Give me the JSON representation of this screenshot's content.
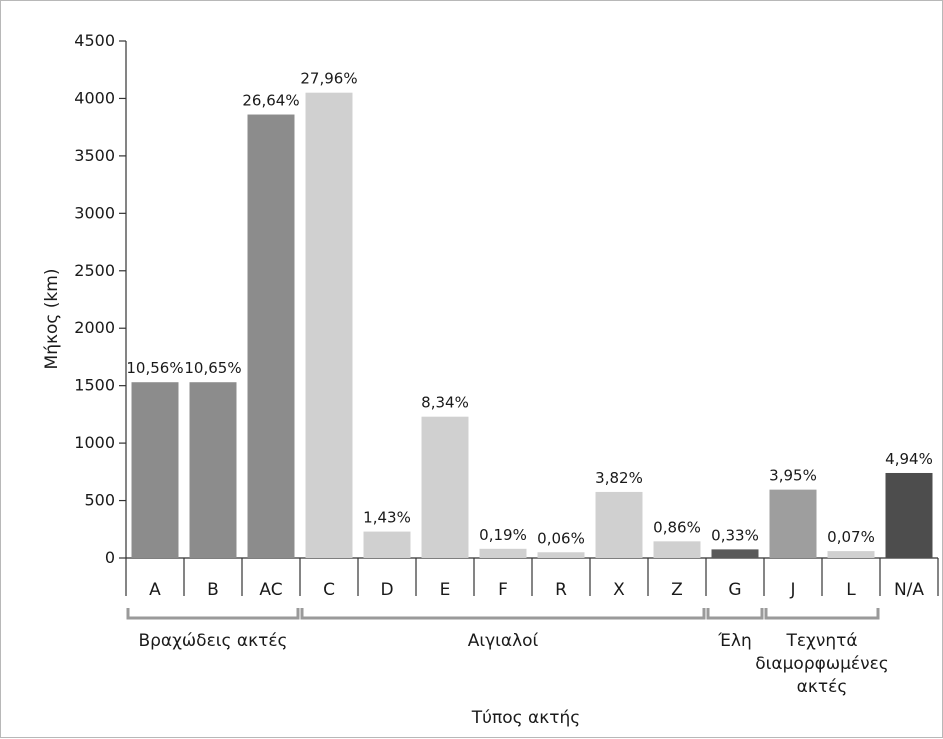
{
  "chart_data": {
    "type": "bar",
    "title": "",
    "ylabel": "Μήκος (km)",
    "xlabel": "Τύπος ακτής",
    "ylim": [
      0,
      4500
    ],
    "yticks": [
      0,
      500,
      1000,
      1500,
      2000,
      2500,
      3000,
      3500,
      4000,
      4500
    ],
    "grid": false,
    "categories": [
      "A",
      "B",
      "AC",
      "C",
      "D",
      "E",
      "F",
      "R",
      "X",
      "Z",
      "G",
      "J",
      "L",
      "N/A"
    ],
    "values": [
      1530,
      1530,
      3860,
      4050,
      230,
      1230,
      80,
      50,
      575,
      145,
      75,
      595,
      60,
      740
    ],
    "labels": [
      "10,56%",
      "10,65%",
      "26,64%",
      "27,96%",
      "1,43%",
      "8,34%",
      "0,19%",
      "0,06%",
      "3,82%",
      "0,86%",
      "0,33%",
      "3,95%",
      "0,07%",
      "4,94%"
    ],
    "colors": [
      "#8c8c8c",
      "#8c8c8c",
      "#8c8c8c",
      "#d0d0d0",
      "#d0d0d0",
      "#d0d0d0",
      "#d0d0d0",
      "#d0d0d0",
      "#d0d0d0",
      "#d0d0d0",
      "#595959",
      "#9e9e9e",
      "#d0d0d0",
      "#4d4d4d"
    ],
    "groups": [
      {
        "lines": [
          "Βραχώδεις ακτές"
        ],
        "start": 0,
        "end": 2
      },
      {
        "lines": [
          "Αιγιαλοί"
        ],
        "start": 3,
        "end": 9
      },
      {
        "lines": [
          "Έλη"
        ],
        "start": 10,
        "end": 10
      },
      {
        "lines": [
          "Τεχνητά",
          "διαμορφωμένες",
          "ακτές"
        ],
        "start": 11,
        "end": 12
      }
    ]
  }
}
